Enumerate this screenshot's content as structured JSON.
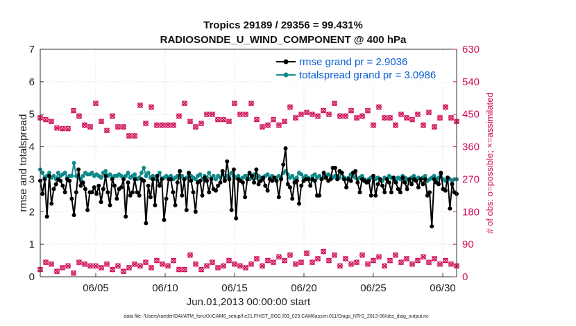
{
  "chart_data": {
    "type": "line",
    "title_line1": "Tropics 29189 / 29356 = 99.431%",
    "title_line2": "RADIOSONDE_U_WIND_COMPONENT @ 400 hPa",
    "ylabel_left": "rmse and totalspread",
    "ylabel_right": "# of obs: o=possible; ×=assimilated",
    "xlabel": "Jun.01,2013 00:00:00 start",
    "footnote": "data file: /Users/raeder/DAI/ATM_forcXX/CAM6_setup/f.e21.FHIST_BGC.f09_025.CAM6assim.011/Diags_NTrS_2013-06/obs_diag_output.nc",
    "xlim": [
      1,
      31
    ],
    "ylim_left": [
      0,
      7
    ],
    "ylim_right": [
      0,
      630
    ],
    "left_ticks": [
      "0",
      "1",
      "2",
      "3",
      "4",
      "5",
      "6",
      "7"
    ],
    "right_ticks": [
      "0",
      "90",
      "180",
      "270",
      "360",
      "450",
      "540",
      "630"
    ],
    "x_ticks": [
      {
        "day": 5,
        "label": "06/05"
      },
      {
        "day": 10,
        "label": "06/10"
      },
      {
        "day": 15,
        "label": "06/15"
      },
      {
        "day": 20,
        "label": "06/20"
      },
      {
        "day": 25,
        "label": "06/25"
      },
      {
        "day": 30,
        "label": "06/30"
      }
    ],
    "grid": true,
    "legend_position": "top-right",
    "colors": {
      "rmse": "#000000",
      "spread": "#0f8a8a",
      "obs": "#d0105a",
      "legend_text": "#0b5fd6"
    },
    "series": [
      {
        "name": "rmse grand pr = 2.9036",
        "color": "#000000",
        "values": [
          2.95,
          2.55,
          3.0,
          1.85,
          3.1,
          2.25,
          2.7,
          2.85,
          3.0,
          2.95,
          2.8,
          2.6,
          3.0,
          2.95,
          2.4,
          1.9,
          2.6,
          3.3,
          2.8,
          2.9,
          2.7,
          2.05,
          2.6,
          2.6,
          2.75,
          2.55,
          2.8,
          2.3,
          2.7,
          3.1,
          2.6,
          2.2,
          3.0,
          2.8,
          2.4,
          2.7,
          2.75,
          3.0,
          1.85,
          2.9,
          2.5,
          2.6,
          3.0,
          2.6,
          2.5,
          3.0,
          2.95,
          1.65,
          2.8,
          2.45,
          3.0,
          2.2,
          3.1,
          2.8,
          3.0,
          1.75,
          2.4,
          3.0,
          3.0,
          2.6,
          2.2,
          2.9,
          3.25,
          2.5,
          3.0,
          2.05,
          3.2,
          2.95,
          2.6,
          2.0,
          2.9,
          2.95,
          2.5,
          3.05,
          2.95,
          2.6,
          3.0,
          2.7,
          2.65,
          2.8,
          2.9,
          3.25,
          2.95,
          3.55,
          3.0,
          2.05,
          3.3,
          1.8,
          3.0,
          2.95,
          2.9,
          2.45,
          3.0,
          3.2,
          3.1,
          2.9,
          3.3,
          2.85,
          2.95,
          3.05,
          2.8,
          2.65,
          3.0,
          2.95,
          3.05,
          2.95,
          2.45,
          3.0,
          3.45,
          3.95,
          2.85,
          2.75,
          2.4,
          2.9,
          2.95,
          2.25,
          2.8,
          2.95,
          3.0,
          3.0,
          2.8,
          3.0,
          2.95,
          2.5,
          2.5,
          3.0,
          3.2,
          3.05,
          2.95,
          3.0,
          3.35,
          3.35,
          3.0,
          3.25,
          3.2,
          3.0,
          2.75,
          3.0,
          2.95,
          3.2,
          3.25,
          2.9,
          2.6,
          3.0,
          2.95,
          2.9,
          2.95,
          2.5,
          3.1,
          2.5,
          2.85,
          3.0,
          2.8,
          2.6,
          3.0,
          2.9,
          2.6,
          3.05,
          2.9,
          2.7,
          2.6,
          3.05,
          2.9,
          2.7,
          3.0,
          2.85,
          3.0,
          2.95,
          2.75,
          3.0,
          2.85,
          3.0,
          2.5,
          2.6,
          1.55,
          3.0,
          2.9,
          2.85,
          3.2,
          2.7,
          2.65,
          3.05,
          2.1,
          2.85,
          2.6,
          2.55
        ]
      },
      {
        "name": "totalspread grand pr = 3.0986",
        "color": "#0f8a8a",
        "values": [
          3.3,
          3.2,
          3.05,
          3.1,
          3.2,
          3.05,
          3.1,
          3.0,
          3.2,
          3.1,
          3.15,
          3.2,
          3.05,
          3.1,
          3.1,
          3.5,
          3.1,
          3.05,
          3.0,
          3.1,
          3.2,
          3.15,
          3.15,
          3.2,
          3.1,
          3.15,
          3.1,
          3.05,
          3.2,
          3.25,
          3.1,
          3.15,
          3.05,
          3.1,
          3.1,
          3.15,
          3.1,
          3.05,
          3.1,
          3.2,
          3.05,
          3.1,
          3.15,
          3.0,
          3.05,
          3.2,
          3.35,
          3.1,
          3.2,
          3.05,
          3.1,
          3.0,
          3.1,
          3.2,
          3.0,
          3.05,
          3.1,
          3.05,
          3.1,
          3.0,
          3.05,
          3.1,
          3.05,
          3.1,
          3.0,
          3.05,
          3.15,
          3.1,
          3.05,
          3.0,
          3.1,
          3.15,
          3.0,
          3.1,
          3.05,
          3.2,
          3.05,
          3.1,
          3.0,
          3.1,
          3.05,
          3.15,
          3.0,
          3.1,
          3.05,
          3.2,
          3.1,
          3.05,
          3.1,
          3.0,
          3.05,
          3.1,
          3.1,
          3.0,
          3.05,
          3.15,
          3.05,
          3.1,
          3.05,
          3.0,
          3.1,
          3.15,
          3.05,
          3.1,
          3.0,
          3.05,
          3.1,
          3.05,
          3.2,
          3.25,
          3.15,
          3.05,
          3.1,
          3.0,
          3.05,
          3.2,
          3.15,
          3.05,
          3.1,
          3.05,
          3.0,
          3.1,
          3.15,
          3.05,
          3.1,
          3.0,
          3.05,
          3.1,
          3.15,
          3.1,
          3.05,
          3.1,
          3.1,
          3.05,
          3.2,
          3.05,
          3.0,
          3.05,
          3.15,
          3.1,
          3.05,
          3.0,
          3.05,
          3.1,
          3.0,
          2.95,
          3.0,
          3.05,
          3.1,
          3.0,
          3.05,
          3.0,
          2.95,
          3.05,
          3.0,
          3.1,
          3.05,
          3.0,
          2.95,
          3.05,
          3.0,
          3.1,
          3.05,
          3.0,
          2.95,
          3.05,
          3.1,
          3.0,
          3.05,
          3.0,
          3.05,
          3.1,
          2.95,
          3.0,
          3.05,
          3.1,
          3.0,
          3.05,
          3.15,
          3.0,
          2.95,
          3.05,
          3.0,
          2.95,
          3.0,
          3.0
        ]
      }
    ],
    "obs_possible_top": [
      440,
      435,
      430,
      412,
      410,
      410,
      460,
      445,
      420,
      415,
      480,
      430,
      405,
      445,
      415,
      415,
      390,
      390,
      475,
      425,
      470,
      420,
      420,
      420,
      420,
      445,
      480,
      430,
      415,
      425,
      450,
      450,
      435,
      435,
      430,
      480,
      450,
      450,
      480,
      435,
      415,
      420,
      435,
      420,
      430,
      470,
      440,
      450,
      455,
      450,
      445,
      460,
      450,
      480,
      445,
      445,
      460,
      440,
      445,
      460,
      420,
      470,
      440,
      440,
      420,
      450,
      440,
      435,
      450,
      420,
      455,
      415,
      440,
      470,
      440,
      430
    ],
    "obs_possible_bottom": [
      20,
      40,
      35,
      15,
      25,
      30,
      10,
      40,
      35,
      30,
      30,
      25,
      35,
      20,
      30,
      15,
      25,
      35,
      30,
      40,
      25,
      45,
      35,
      30,
      45,
      20,
      20,
      60,
      35,
      20,
      30,
      40,
      25,
      30,
      45,
      35,
      30,
      25,
      35,
      50,
      30,
      45,
      40,
      55,
      45,
      60,
      35,
      40,
      65,
      40,
      50,
      70,
      45,
      60,
      30,
      50,
      35,
      40,
      60,
      35,
      45,
      55,
      30,
      45,
      60,
      40,
      50,
      35,
      45,
      55,
      40,
      50,
      35,
      45,
      35,
      30
    ]
  }
}
